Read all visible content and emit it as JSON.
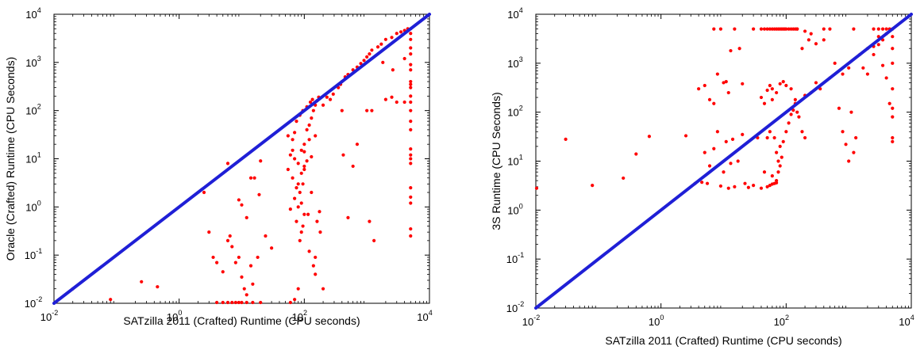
{
  "chart_data": [
    {
      "type": "scatter",
      "xscale": "log",
      "yscale": "log",
      "xlim": [
        0.01,
        10000
      ],
      "ylim": [
        0.01,
        10000
      ],
      "xlabel": "SATzilla 2011 (Crafted) Runtime (CPU seconds)",
      "ylabel": "Oracle (Crafted) Runtime (CPU Seconds)",
      "xticks": [
        {
          "base": "10",
          "exp": "-2",
          "value": 0.01
        },
        {
          "base": "10",
          "exp": "0",
          "value": 1
        },
        {
          "base": "10",
          "exp": "2",
          "value": 100
        },
        {
          "base": "10",
          "exp": "4",
          "value": 10000
        }
      ],
      "yticks": [
        {
          "base": "10",
          "exp": "-2",
          "value": 0.01
        },
        {
          "base": "10",
          "exp": "-1",
          "value": 0.1
        },
        {
          "base": "10",
          "exp": "0",
          "value": 1
        },
        {
          "base": "10",
          "exp": "1",
          "value": 10
        },
        {
          "base": "10",
          "exp": "2",
          "value": 100
        },
        {
          "base": "10",
          "exp": "3",
          "value": 1000
        },
        {
          "base": "10",
          "exp": "4",
          "value": 10000
        }
      ],
      "grid": false,
      "diagonal": {
        "from": [
          0.01,
          0.01
        ],
        "to": [
          10000,
          10000
        ],
        "color": "#1f1fd6"
      },
      "marker_color": "#ff0000",
      "points": [
        [
          0.02,
          0.02
        ],
        [
          0.08,
          0.012
        ],
        [
          0.25,
          0.028
        ],
        [
          0.45,
          0.022
        ],
        [
          3,
          0.3
        ],
        [
          3.5,
          0.09
        ],
        [
          4,
          0.07
        ],
        [
          5,
          0.045
        ],
        [
          6,
          0.2
        ],
        [
          6.5,
          0.25
        ],
        [
          7,
          0.15
        ],
        [
          8,
          0.07
        ],
        [
          9,
          0.09
        ],
        [
          10,
          0.035
        ],
        [
          11,
          0.02
        ],
        [
          12,
          0.015
        ],
        [
          14,
          0.06
        ],
        [
          15,
          0.025
        ],
        [
          18,
          0.09
        ],
        [
          4,
          0.01
        ],
        [
          5,
          0.01
        ],
        [
          6,
          0.01
        ],
        [
          7,
          0.01
        ],
        [
          8,
          0.01
        ],
        [
          9,
          0.01
        ],
        [
          10,
          0.01
        ],
        [
          12,
          0.01
        ],
        [
          15,
          0.01
        ],
        [
          20,
          0.01
        ],
        [
          2.5,
          2
        ],
        [
          6,
          8
        ],
        [
          9,
          1.4
        ],
        [
          10,
          1.1
        ],
        [
          12,
          0.6
        ],
        [
          14,
          4
        ],
        [
          16,
          4
        ],
        [
          19,
          1.8
        ],
        [
          20,
          9
        ],
        [
          24,
          0.25
        ],
        [
          30,
          0.14
        ],
        [
          60,
          0.01
        ],
        [
          70,
          0.012
        ],
        [
          80,
          0.02
        ],
        [
          60,
          12
        ],
        [
          65,
          25
        ],
        [
          70,
          35
        ],
        [
          75,
          0.5
        ],
        [
          80,
          1
        ],
        [
          85,
          2
        ],
        [
          90,
          0.3
        ],
        [
          95,
          3
        ],
        [
          100,
          6
        ],
        [
          60,
          0.9
        ],
        [
          70,
          1.5
        ],
        [
          80,
          8
        ],
        [
          90,
          15
        ],
        [
          100,
          20
        ],
        [
          110,
          40
        ],
        [
          120,
          50
        ],
        [
          130,
          70
        ],
        [
          140,
          100
        ],
        [
          150,
          130
        ],
        [
          160,
          160
        ],
        [
          170,
          190
        ],
        [
          70,
          10
        ],
        [
          85,
          0.2
        ],
        [
          95,
          0.4
        ],
        [
          120,
          0.12
        ],
        [
          140,
          0.06
        ],
        [
          150,
          0.04
        ],
        [
          200,
          0.02
        ],
        [
          180,
          0.3
        ],
        [
          160,
          0.5
        ],
        [
          100,
          0.7
        ],
        [
          80,
          3
        ],
        [
          90,
          5
        ],
        [
          100,
          7
        ],
        [
          110,
          9
        ],
        [
          130,
          11
        ],
        [
          150,
          30
        ],
        [
          65,
          15
        ],
        [
          55,
          30
        ],
        [
          75,
          60
        ],
        [
          85,
          80
        ],
        [
          95,
          100
        ],
        [
          110,
          120
        ],
        [
          125,
          150
        ],
        [
          135,
          170
        ],
        [
          90,
          1.2
        ],
        [
          75,
          2.5
        ],
        [
          65,
          4
        ],
        [
          55,
          6
        ],
        [
          100,
          14
        ],
        [
          120,
          25
        ],
        [
          150,
          0.09
        ],
        [
          115,
          0.7
        ],
        [
          130,
          2
        ],
        [
          175,
          0.8
        ],
        [
          200,
          130
        ],
        [
          230,
          190
        ],
        [
          260,
          170
        ],
        [
          290,
          220
        ],
        [
          350,
          300
        ],
        [
          380,
          350
        ],
        [
          400,
          400
        ],
        [
          450,
          500
        ],
        [
          500,
          560
        ],
        [
          600,
          700
        ],
        [
          700,
          800
        ],
        [
          800,
          950
        ],
        [
          900,
          1100
        ],
        [
          1000,
          1300
        ],
        [
          1100,
          1500
        ],
        [
          1200,
          1800
        ],
        [
          1500,
          2100
        ],
        [
          1700,
          2400
        ],
        [
          2000,
          3000
        ],
        [
          2500,
          3300
        ],
        [
          3000,
          4000
        ],
        [
          3500,
          4300
        ],
        [
          4000,
          4600
        ],
        [
          4500,
          5000
        ],
        [
          420,
          12
        ],
        [
          600,
          7
        ],
        [
          400,
          100
        ],
        [
          1000,
          100
        ],
        [
          1200,
          100
        ],
        [
          2000,
          170
        ],
        [
          2500,
          190
        ],
        [
          500,
          0.6
        ],
        [
          1100,
          0.5
        ],
        [
          1300,
          0.2
        ],
        [
          700,
          20
        ],
        [
          3000,
          150
        ],
        [
          2600,
          700
        ],
        [
          1800,
          1000
        ],
        [
          5000,
          5000
        ],
        [
          5000,
          4000
        ],
        [
          5000,
          3000
        ],
        [
          5000,
          2000
        ],
        [
          5000,
          1500
        ],
        [
          5000,
          900
        ],
        [
          5000,
          700
        ],
        [
          5000,
          400
        ],
        [
          5000,
          350
        ],
        [
          5000,
          300
        ],
        [
          5000,
          200
        ],
        [
          5000,
          150
        ],
        [
          5000,
          100
        ],
        [
          5000,
          60
        ],
        [
          5000,
          40
        ],
        [
          5000,
          16
        ],
        [
          5000,
          12
        ],
        [
          5000,
          10
        ],
        [
          5000,
          8
        ],
        [
          5000,
          2.5
        ],
        [
          5000,
          1.6
        ],
        [
          5000,
          1.2
        ],
        [
          5000,
          0.35
        ],
        [
          5000,
          0.25
        ],
        [
          4000,
          150
        ],
        [
          4000,
          1200
        ]
      ]
    },
    {
      "type": "scatter",
      "xscale": "log",
      "yscale": "log",
      "xlim": [
        0.01,
        10000
      ],
      "ylim": [
        0.01,
        10000
      ],
      "xlabel": "SATzilla 2011 (Crafted) Runtime (CPU seconds)",
      "ylabel": "3S Runtime (CPU Seconds)",
      "xticks": [
        {
          "base": "10",
          "exp": "-2",
          "value": 0.01
        },
        {
          "base": "10",
          "exp": "0",
          "value": 1
        },
        {
          "base": "10",
          "exp": "2",
          "value": 100
        },
        {
          "base": "10",
          "exp": "4",
          "value": 10000
        }
      ],
      "yticks": [
        {
          "base": "10",
          "exp": "-2",
          "value": 0.01
        },
        {
          "base": "10",
          "exp": "-1",
          "value": 0.1
        },
        {
          "base": "10",
          "exp": "0",
          "value": 1
        },
        {
          "base": "10",
          "exp": "1",
          "value": 10
        },
        {
          "base": "10",
          "exp": "2",
          "value": 100
        },
        {
          "base": "10",
          "exp": "3",
          "value": 1000
        },
        {
          "base": "10",
          "exp": "4",
          "value": 10000
        }
      ],
      "grid": false,
      "diagonal": {
        "from": [
          0.01,
          0.01
        ],
        "to": [
          10000,
          10000
        ],
        "color": "#1f1fd6"
      },
      "marker_color": "#ff0000",
      "points": [
        [
          0.01,
          2.8
        ],
        [
          0.03,
          28
        ],
        [
          0.08,
          3.2
        ],
        [
          0.25,
          4.5
        ],
        [
          0.4,
          14
        ],
        [
          0.65,
          32
        ],
        [
          2.5,
          33
        ],
        [
          3.5,
          3.5
        ],
        [
          4.5,
          3.7
        ],
        [
          5,
          15
        ],
        [
          5.5,
          3.5
        ],
        [
          6,
          8
        ],
        [
          7,
          18
        ],
        [
          8,
          40
        ],
        [
          9,
          3.1
        ],
        [
          10,
          6
        ],
        [
          11,
          25
        ],
        [
          12,
          2.8
        ],
        [
          13,
          9
        ],
        [
          14,
          28
        ],
        [
          15,
          3
        ],
        [
          17,
          10
        ],
        [
          20,
          35
        ],
        [
          22,
          3.5
        ],
        [
          25,
          2.9
        ],
        [
          4,
          300
        ],
        [
          5,
          350
        ],
        [
          6,
          180
        ],
        [
          7,
          150
        ],
        [
          7,
          5000
        ],
        [
          8,
          600
        ],
        [
          9,
          5000
        ],
        [
          10,
          400
        ],
        [
          11,
          420
        ],
        [
          12,
          250
        ],
        [
          13,
          1800
        ],
        [
          15,
          5000
        ],
        [
          20,
          380
        ],
        [
          30,
          5000
        ],
        [
          18,
          2000
        ],
        [
          40,
          5000
        ],
        [
          45,
          5000
        ],
        [
          50,
          5000
        ],
        [
          55,
          5000
        ],
        [
          60,
          5000
        ],
        [
          65,
          5000
        ],
        [
          70,
          5000
        ],
        [
          75,
          5000
        ],
        [
          80,
          5000
        ],
        [
          85,
          5000
        ],
        [
          90,
          5000
        ],
        [
          95,
          5000
        ],
        [
          100,
          5000
        ],
        [
          110,
          5000
        ],
        [
          120,
          5000
        ],
        [
          130,
          5000
        ],
        [
          140,
          5000
        ],
        [
          150,
          5000
        ],
        [
          40,
          200
        ],
        [
          45,
          150
        ],
        [
          50,
          280
        ],
        [
          55,
          350
        ],
        [
          60,
          180
        ],
        [
          65,
          30
        ],
        [
          70,
          15
        ],
        [
          75,
          10
        ],
        [
          80,
          20
        ],
        [
          90,
          25
        ],
        [
          100,
          40
        ],
        [
          110,
          60
        ],
        [
          120,
          90
        ],
        [
          130,
          110
        ],
        [
          140,
          150
        ],
        [
          60,
          5
        ],
        [
          65,
          3.5
        ],
        [
          70,
          4
        ],
        [
          75,
          6
        ],
        [
          80,
          8
        ],
        [
          85,
          12
        ],
        [
          50,
          30
        ],
        [
          55,
          40
        ],
        [
          60,
          300
        ],
        [
          70,
          250
        ],
        [
          80,
          380
        ],
        [
          90,
          420
        ],
        [
          100,
          350
        ],
        [
          120,
          300
        ],
        [
          140,
          180
        ],
        [
          150,
          100
        ],
        [
          160,
          80
        ],
        [
          180,
          40
        ],
        [
          200,
          30
        ],
        [
          50,
          3
        ],
        [
          55,
          3.2
        ],
        [
          60,
          3.4
        ],
        [
          70,
          3.6
        ],
        [
          45,
          6
        ],
        [
          40,
          2.8
        ],
        [
          35,
          30
        ],
        [
          30,
          3.2
        ],
        [
          200,
          220
        ],
        [
          250,
          250
        ],
        [
          300,
          400
        ],
        [
          350,
          300
        ],
        [
          400,
          3000
        ],
        [
          500,
          500
        ],
        [
          600,
          1000
        ],
        [
          800,
          600
        ],
        [
          1000,
          800
        ],
        [
          1200,
          15
        ],
        [
          1500,
          1500
        ],
        [
          2000,
          2000
        ],
        [
          2500,
          2200
        ],
        [
          3000,
          2400
        ],
        [
          3500,
          3000
        ],
        [
          4000,
          4000
        ],
        [
          400,
          5000
        ],
        [
          500,
          5000
        ],
        [
          1200,
          5000
        ],
        [
          2500,
          5000
        ],
        [
          3000,
          5000
        ],
        [
          3500,
          5000
        ],
        [
          4000,
          5000
        ],
        [
          4500,
          5000
        ],
        [
          5000,
          5000
        ],
        [
          150,
          5000
        ],
        [
          200,
          4500
        ],
        [
          250,
          4000
        ],
        [
          230,
          3000
        ],
        [
          180,
          2000
        ],
        [
          300,
          2500
        ],
        [
          700,
          120
        ],
        [
          800,
          40
        ],
        [
          1000,
          10
        ],
        [
          900,
          22
        ],
        [
          1100,
          100
        ],
        [
          1300,
          30
        ],
        [
          1700,
          800
        ],
        [
          2000,
          600
        ],
        [
          2500,
          1500
        ],
        [
          3000,
          3500
        ],
        [
          3500,
          900
        ],
        [
          4000,
          500
        ],
        [
          4500,
          150
        ],
        [
          5000,
          80
        ],
        [
          5000,
          120
        ],
        [
          5000,
          300
        ],
        [
          5000,
          1000
        ],
        [
          5000,
          2000
        ],
        [
          5000,
          3500
        ],
        [
          5000,
          30
        ],
        [
          5000,
          25
        ]
      ]
    }
  ]
}
